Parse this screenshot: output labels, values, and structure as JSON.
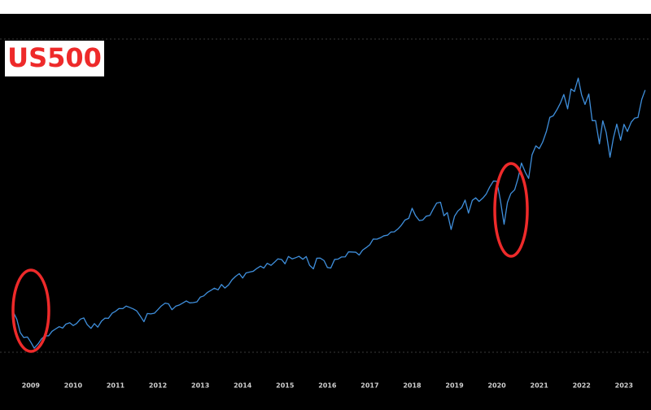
{
  "chart_data": {
    "type": "line",
    "title": "US500",
    "x": [
      2008.58,
      2008.67,
      2008.75,
      2008.83,
      2008.92,
      2009.0,
      2009.08,
      2009.17,
      2009.25,
      2009.33,
      2009.42,
      2009.5,
      2009.58,
      2009.67,
      2009.75,
      2009.83,
      2009.92,
      2010.0,
      2010.08,
      2010.17,
      2010.25,
      2010.33,
      2010.42,
      2010.5,
      2010.58,
      2010.67,
      2010.75,
      2010.83,
      2010.92,
      2011.0,
      2011.08,
      2011.17,
      2011.25,
      2011.33,
      2011.42,
      2011.5,
      2011.58,
      2011.67,
      2011.75,
      2011.83,
      2011.92,
      2012.0,
      2012.08,
      2012.17,
      2012.25,
      2012.33,
      2012.42,
      2012.5,
      2012.58,
      2012.67,
      2012.75,
      2012.83,
      2012.92,
      2013.0,
      2013.08,
      2013.17,
      2013.25,
      2013.33,
      2013.42,
      2013.5,
      2013.58,
      2013.67,
      2013.75,
      2013.83,
      2013.92,
      2014.0,
      2014.08,
      2014.17,
      2014.25,
      2014.33,
      2014.42,
      2014.5,
      2014.58,
      2014.67,
      2014.75,
      2014.83,
      2014.92,
      2015.0,
      2015.08,
      2015.17,
      2015.25,
      2015.33,
      2015.42,
      2015.5,
      2015.58,
      2015.67,
      2015.75,
      2015.83,
      2015.92,
      2016.0,
      2016.08,
      2016.17,
      2016.25,
      2016.33,
      2016.42,
      2016.5,
      2016.58,
      2016.67,
      2016.75,
      2016.83,
      2016.92,
      2017.0,
      2017.08,
      2017.17,
      2017.25,
      2017.33,
      2017.42,
      2017.5,
      2017.58,
      2017.67,
      2017.75,
      2017.83,
      2017.92,
      2018.0,
      2018.08,
      2018.17,
      2018.25,
      2018.33,
      2018.42,
      2018.5,
      2018.58,
      2018.67,
      2018.75,
      2018.83,
      2018.92,
      2019.0,
      2019.08,
      2019.17,
      2019.25,
      2019.33,
      2019.42,
      2019.5,
      2019.58,
      2019.67,
      2019.75,
      2019.83,
      2019.92,
      2020.0,
      2020.08,
      2020.17,
      2020.25,
      2020.33,
      2020.42,
      2020.5,
      2020.58,
      2020.67,
      2020.75,
      2020.83,
      2020.92,
      2021.0,
      2021.08,
      2021.17,
      2021.25,
      2021.33,
      2021.42,
      2021.5,
      2021.58,
      2021.67,
      2021.75,
      2021.83,
      2021.92,
      2022.0,
      2022.08,
      2022.17,
      2022.25,
      2022.33,
      2022.42,
      2022.5,
      2022.58,
      2022.67,
      2022.75,
      2022.83,
      2022.92,
      2023.0,
      2023.08,
      2023.17,
      2023.25,
      2023.33,
      2023.42,
      2023.5
    ],
    "series": [
      {
        "name": "US500",
        "color": "#3f8fdc",
        "values": [
          1283,
          1166,
          969,
          896,
          903,
          826,
          735,
          798,
          873,
          919,
          919,
          987,
          1021,
          1057,
          1036,
          1096,
          1115,
          1074,
          1104,
          1169,
          1187,
          1089,
          1031,
          1102,
          1049,
          1141,
          1183,
          1181,
          1258,
          1286,
          1327,
          1326,
          1364,
          1345,
          1321,
          1292,
          1219,
          1131,
          1253,
          1247,
          1258,
          1312,
          1366,
          1408,
          1398,
          1310,
          1362,
          1379,
          1407,
          1441,
          1412,
          1416,
          1426,
          1498,
          1515,
          1569,
          1598,
          1631,
          1606,
          1686,
          1633,
          1682,
          1757,
          1806,
          1848,
          1783,
          1859,
          1872,
          1884,
          1924,
          1960,
          1931,
          2003,
          1972,
          2018,
          2068,
          2059,
          1995,
          2105,
          2068,
          2086,
          2107,
          2063,
          2104,
          1972,
          1920,
          2079,
          2080,
          2044,
          1940,
          1932,
          2060,
          2065,
          2097,
          2099,
          2174,
          2171,
          2168,
          2126,
          2199,
          2239,
          2279,
          2364,
          2363,
          2384,
          2412,
          2423,
          2470,
          2472,
          2519,
          2575,
          2648,
          2674,
          2824,
          2714,
          2641,
          2648,
          2705,
          2718,
          2816,
          2902,
          2914,
          2712,
          2760,
          2507,
          2704,
          2784,
          2834,
          2946,
          2752,
          2942,
          2980,
          2926,
          2977,
          3038,
          3141,
          3231,
          3226,
          2954,
          2585,
          2912,
          3044,
          3100,
          3271,
          3500,
          3363,
          3270,
          3622,
          3756,
          3714,
          3811,
          3973,
          4181,
          4204,
          4298,
          4395,
          4523,
          4308,
          4605,
          4567,
          4766,
          4516,
          4374,
          4530,
          4132,
          4132,
          3785,
          4130,
          3955,
          3586,
          3872,
          4080,
          3840,
          4077,
          3970,
          4109,
          4169,
          4180,
          4450,
          4589
        ]
      }
    ],
    "xlim": [
      2008.58,
      2023.58
    ],
    "xticks": [
      2009,
      2010,
      2011,
      2012,
      2013,
      2014,
      2015,
      2016,
      2017,
      2018,
      2019,
      2020,
      2021,
      2022,
      2023
    ],
    "ylim": [
      675,
      5350
    ]
  }
}
